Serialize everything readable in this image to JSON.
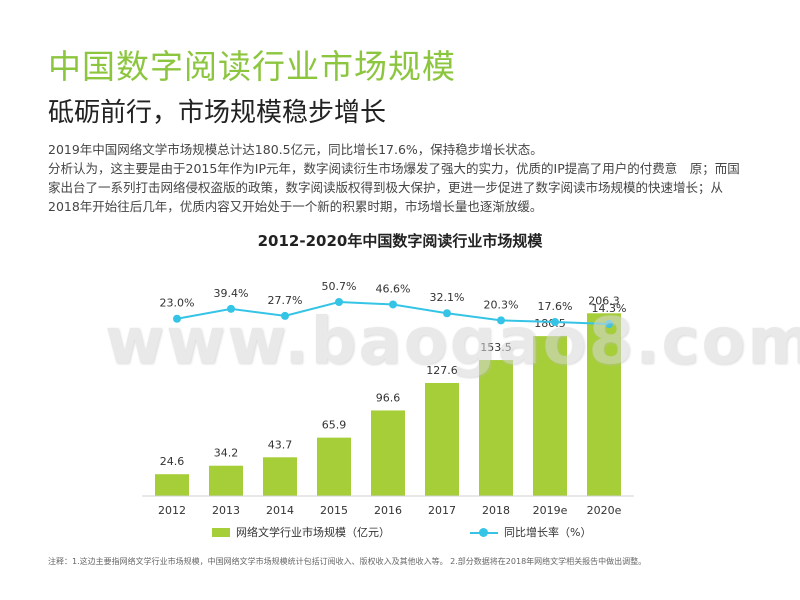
{
  "header": {
    "title": "中国数字阅读行业市场规模",
    "subtitle": "砥砺前行，市场规模稳步增长"
  },
  "description": [
    "2019年中国网络文学市场规模总计达180.5亿元，同比增长17.6%，保持稳步增长状态。",
    "分析认为，这主要是由于2015年作为IP元年，数字阅读衍生市场爆发了强大的实力，优质的IP提高了用户的付费意　原；而国家出台了一系列打击网络侵权盗版的政策，数字阅读版权得到极大保护，更进一步促进了数字阅读市场规模的快速增长；从2018年开始往后几年，优质内容又开始处于一个新的积累时期，市场增长量也逐渐放缓。"
  ],
  "watermark": "www.baogao8.com",
  "chart_data": {
    "type": "bar",
    "title": "2012-2020年中国数字阅读行业市场规模",
    "categories": [
      "2012",
      "2013",
      "2014",
      "2015",
      "2016",
      "2017",
      "2018",
      "2019e",
      "2020e"
    ],
    "series": [
      {
        "name": "网络文学行业市场规模（亿元）",
        "type": "bar",
        "color": "#a6ce39",
        "values": [
          24.6,
          34.2,
          43.7,
          65.9,
          96.6,
          127.6,
          153.5,
          180.5,
          206.3
        ],
        "labels": [
          "24.6",
          "34.2",
          "43.7",
          "65.9",
          "96.6",
          "127.6",
          "153.5",
          "180.5",
          "206.3"
        ]
      },
      {
        "name": "同比增长率（%）",
        "type": "line",
        "color": "#35c4e6",
        "values": [
          23.0,
          39.4,
          27.7,
          50.7,
          46.6,
          32.1,
          20.3,
          17.6,
          14.3
        ],
        "labels": [
          "23.0%",
          "39.4%",
          "27.7%",
          "50.7%",
          "46.6%",
          "32.1%",
          "20.3%",
          "17.6%",
          "14.3%"
        ]
      }
    ],
    "bar_ylim": [
      0,
      210
    ],
    "line_ylim": [
      0,
      60
    ],
    "legend": "bottom",
    "grid": false
  },
  "footnote": "注释：1.这边主要指网络文学行业市场规模，中国网络文学市场规模统计包括订阅收入、版权收入及其他收入等。 2.部分数据将在2018年网络文学相关报告中做出调整。"
}
